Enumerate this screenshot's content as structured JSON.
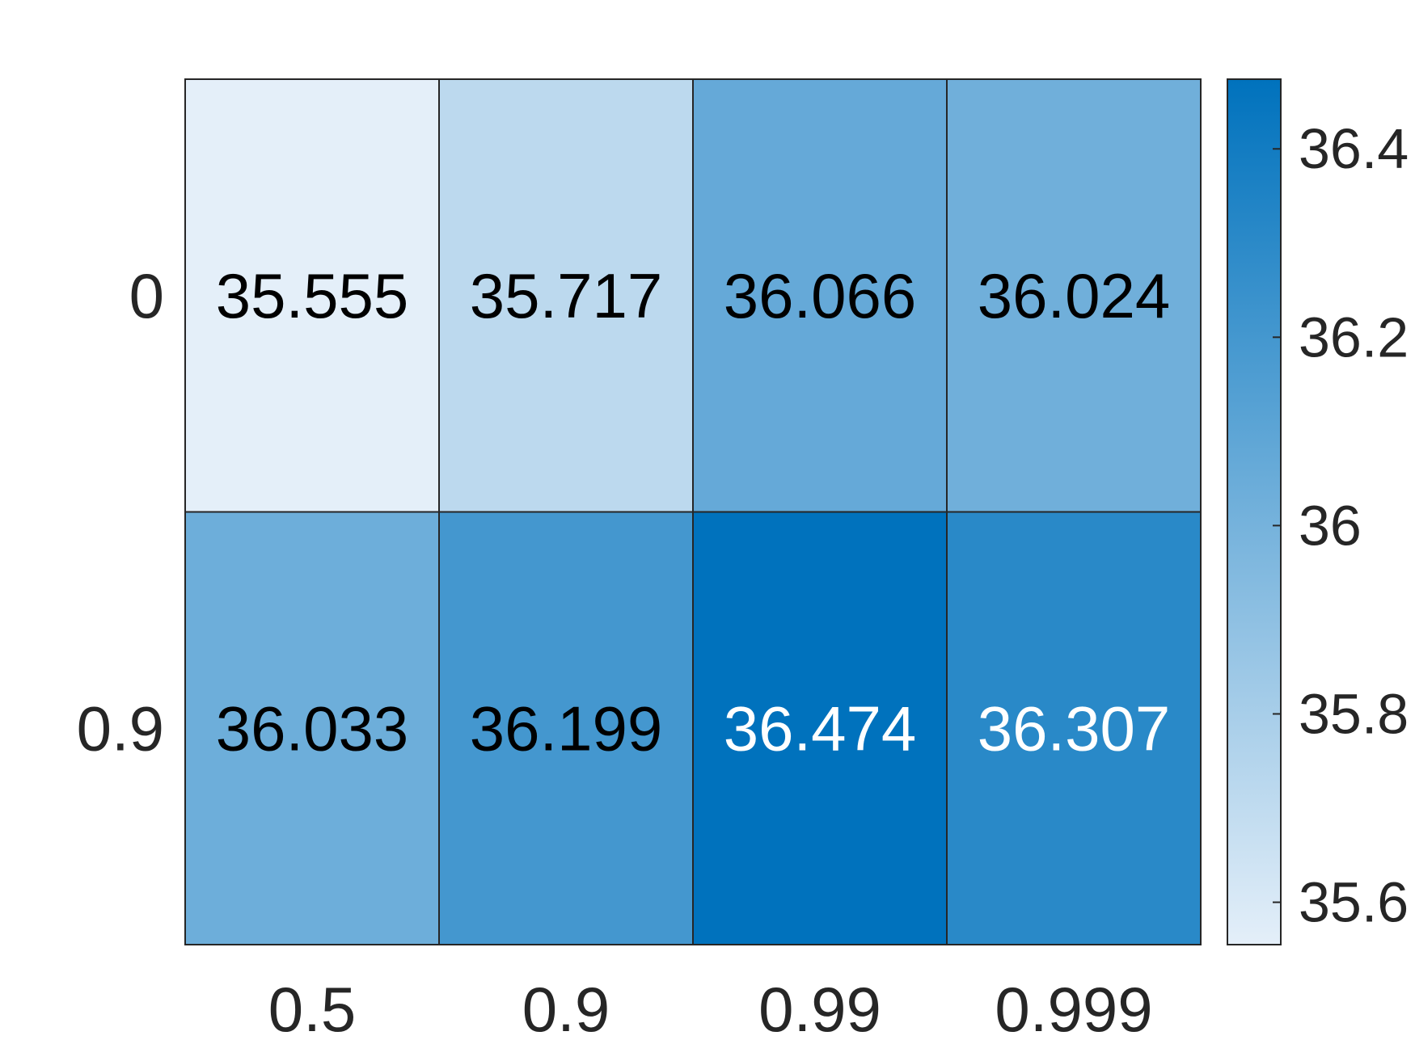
{
  "chart_data": {
    "type": "heatmap",
    "title": "",
    "xlabel": "",
    "ylabel": "",
    "x_categories": [
      "0.5",
      "0.9",
      "0.99",
      "0.999"
    ],
    "y_categories": [
      "0",
      "0.9"
    ],
    "values": [
      [
        35.555,
        35.717,
        36.066,
        36.024
      ],
      [
        36.033,
        36.199,
        36.474,
        36.307
      ]
    ],
    "value_labels": [
      [
        "35.555",
        "35.717",
        "36.066",
        "36.024"
      ],
      [
        "36.033",
        "36.199",
        "36.474",
        "36.307"
      ]
    ],
    "colorbar": {
      "range": [
        35.555,
        36.474
      ],
      "ticks": [
        35.6,
        35.8,
        36,
        36.2,
        36.4
      ],
      "tick_labels": [
        "35.6",
        "35.8",
        "36",
        "36.2",
        "36.4"
      ],
      "color_low": "#e4eff9",
      "color_high": "#0072bd"
    },
    "text_color_dark": "#000000",
    "text_color_light": "#ffffff",
    "edge_color": "#262626",
    "grid": false
  }
}
